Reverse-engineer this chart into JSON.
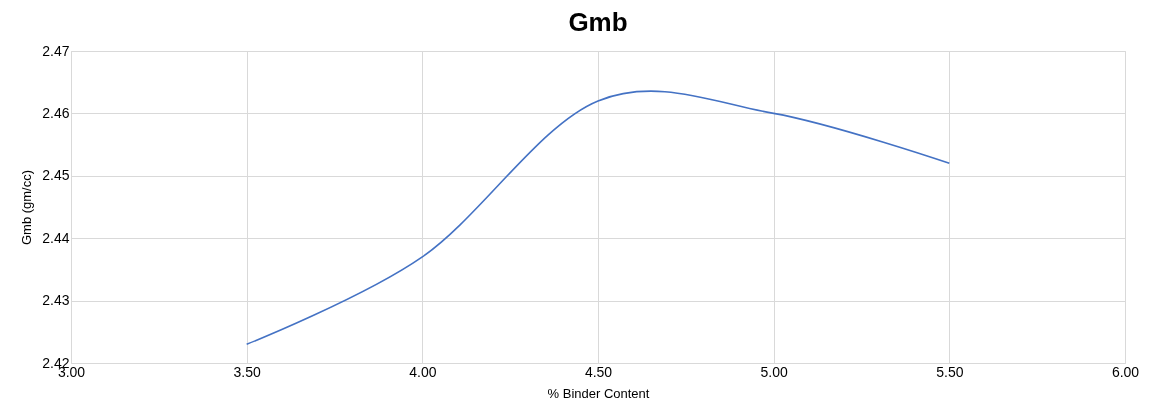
{
  "chart_data": {
    "type": "line",
    "title": "Gmb",
    "xlabel": "% Binder Content",
    "ylabel": "Gmb (gm/cc)",
    "x": [
      3.5,
      4.0,
      4.5,
      5.0,
      5.5
    ],
    "series": [
      {
        "color": "#4472c4",
        "values": [
          2.423,
          2.437,
          2.462,
          2.46,
          2.452
        ]
      }
    ],
    "xlim": [
      3.0,
      6.0
    ],
    "xticks": [
      {
        "value": 3.0,
        "label": "3.00"
      },
      {
        "value": 3.5,
        "label": "3.50"
      },
      {
        "value": 4.0,
        "label": "4.00"
      },
      {
        "value": 4.5,
        "label": "4.50"
      },
      {
        "value": 5.0,
        "label": "5.00"
      },
      {
        "value": 5.5,
        "label": "5.50"
      },
      {
        "value": 6.0,
        "label": "6.00"
      }
    ],
    "ylim": [
      2.42,
      2.47
    ],
    "yticks": [
      2.42,
      2.43,
      2.44,
      2.45,
      2.46,
      2.47
    ],
    "grid": true,
    "marker": "none",
    "line_style": "solid"
  }
}
